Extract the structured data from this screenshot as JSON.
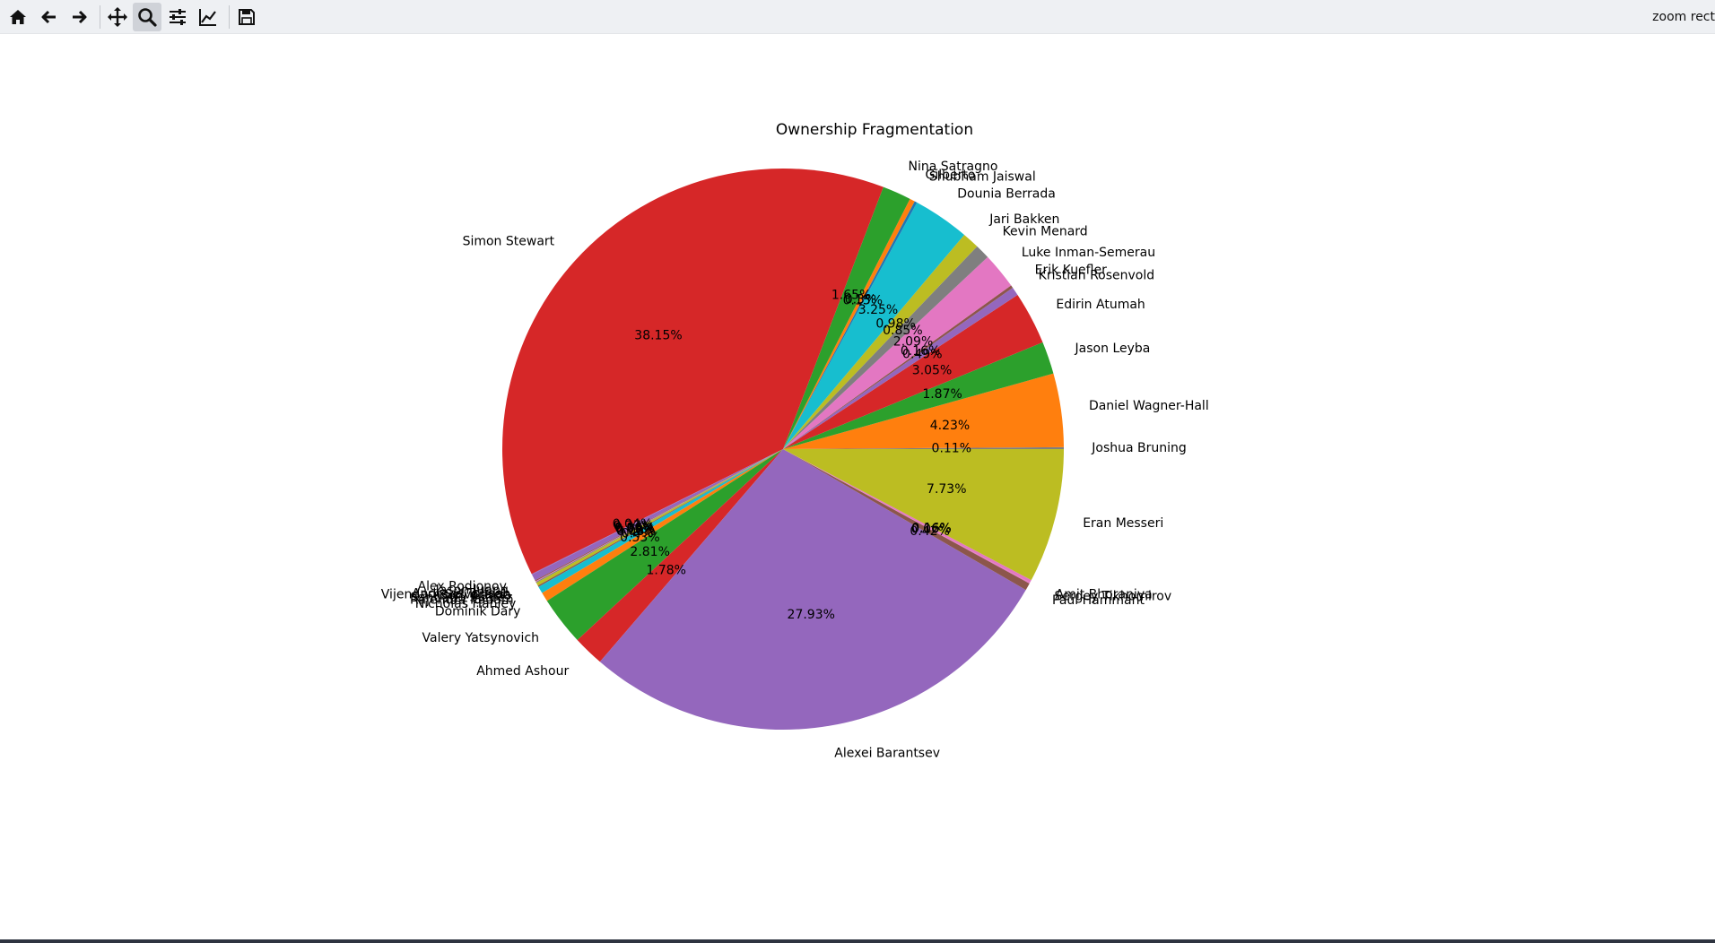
{
  "toolbar": {
    "home": "home-icon",
    "back": "back-arrow-icon",
    "forward": "forward-arrow-icon",
    "pan": "pan-move-icon",
    "zoom": "zoom-magnifier-icon",
    "configure": "configure-subplots-icon",
    "edit": "edit-axes-icon",
    "save": "save-disk-icon",
    "status": "zoom rect"
  },
  "chart_data": {
    "type": "pie",
    "title": "Ownership Fragmentation",
    "start_angle_deg": 0,
    "counterclock": true,
    "slices": [
      {
        "label": "Joshua Bruning",
        "value": 0.11,
        "pct": "0.11%",
        "color": "#7f7f7f"
      },
      {
        "label": "Daniel Wagner-Hall",
        "value": 4.23,
        "pct": "4.23%",
        "color": "#ff7f0e"
      },
      {
        "label": "Jason Leyba",
        "value": 1.87,
        "pct": "1.87%",
        "color": "#2ca02c"
      },
      {
        "label": "Edirin Atumah",
        "value": 3.05,
        "pct": "3.05%",
        "color": "#d62728"
      },
      {
        "label": "Kristian Rosenvold",
        "value": 0.49,
        "pct": "0.49%",
        "color": "#9467bd"
      },
      {
        "label": "Erik Kuefler",
        "value": 0.16,
        "pct": "0.16%",
        "color": "#8c564b"
      },
      {
        "label": "Luke Inman-Semerau",
        "value": 2.09,
        "pct": "2.09%",
        "color": "#e377c2"
      },
      {
        "label": "Kevin Menard",
        "value": 0.85,
        "pct": "0.85%",
        "color": "#7f7f7f"
      },
      {
        "label": "Jari Bakken",
        "value": 0.98,
        "pct": "0.98%",
        "color": "#bcbd22"
      },
      {
        "label": "Dounia Berrada",
        "value": 3.25,
        "pct": "3.25%",
        "color": "#17becf"
      },
      {
        "label": "Shubham Jaiswal",
        "value": 0.15,
        "pct": "0.15%",
        "color": "#1f77b4"
      },
      {
        "label": "Gilberto",
        "value": 0.3,
        "pct": "0.3%",
        "color": "#ff7f0e"
      },
      {
        "label": "Nina Satragno",
        "value": 1.65,
        "pct": "1.65%",
        "color": "#2ca02c"
      },
      {
        "label": "Simon Stewart",
        "value": 38.15,
        "pct": "38.15%",
        "color": "#d62728"
      },
      {
        "label": "Alex Rodionov",
        "value": 0.04,
        "pct": "0.04%",
        "color": "#9467bd"
      },
      {
        "label": "Jason Juang",
        "value": 0.37,
        "pct": "0.37%",
        "color": "#9467bd"
      },
      {
        "label": "Andreas Tolfsen",
        "value": 0.06,
        "pct": "0.06%",
        "color": "#8c564b"
      },
      {
        "label": "Vijendarn Selvarajah",
        "value": 0.04,
        "pct": "0.04%",
        "color": "#e377c2"
      },
      {
        "label": "Boni Garcia",
        "value": 0.06,
        "pct": "0.06%",
        "color": "#7f7f7f"
      },
      {
        "label": "Santiago Suarez",
        "value": 0.18,
        "pct": "0.18%",
        "color": "#bcbd22"
      },
      {
        "label": "Rajendra Kadam",
        "value": 0.08,
        "pct": "0.08%",
        "color": "#8c564b"
      },
      {
        "label": "Nicholas Hanley",
        "value": 0.4,
        "pct": "0.4%",
        "color": "#17becf"
      },
      {
        "label": "Dominik Dary",
        "value": 0.53,
        "pct": "0.53%",
        "color": "#ff7f0e"
      },
      {
        "label": "Valery Yatsynovich",
        "value": 2.81,
        "pct": "2.81%",
        "color": "#2ca02c"
      },
      {
        "label": "Ahmed Ashour",
        "value": 1.78,
        "pct": "1.78%",
        "color": "#d62728"
      },
      {
        "label": "Alexei Barantsev",
        "value": 27.93,
        "pct": "27.93%",
        "color": "#9467bd"
      },
      {
        "label": "Paul Hammant",
        "value": 0.42,
        "pct": "0.42%",
        "color": "#8c564b"
      },
      {
        "label": "Sergey Tikhomirov",
        "value": 0.06,
        "pct": "0.06%",
        "color": "#e377c2"
      },
      {
        "label": "Amit Bhoraniya",
        "value": 0.16,
        "pct": "0.16%",
        "color": "#e377c2"
      },
      {
        "label": "Eran Messeri",
        "value": 7.73,
        "pct": "7.73%",
        "color": "#bcbd22"
      }
    ],
    "legend": "none"
  }
}
